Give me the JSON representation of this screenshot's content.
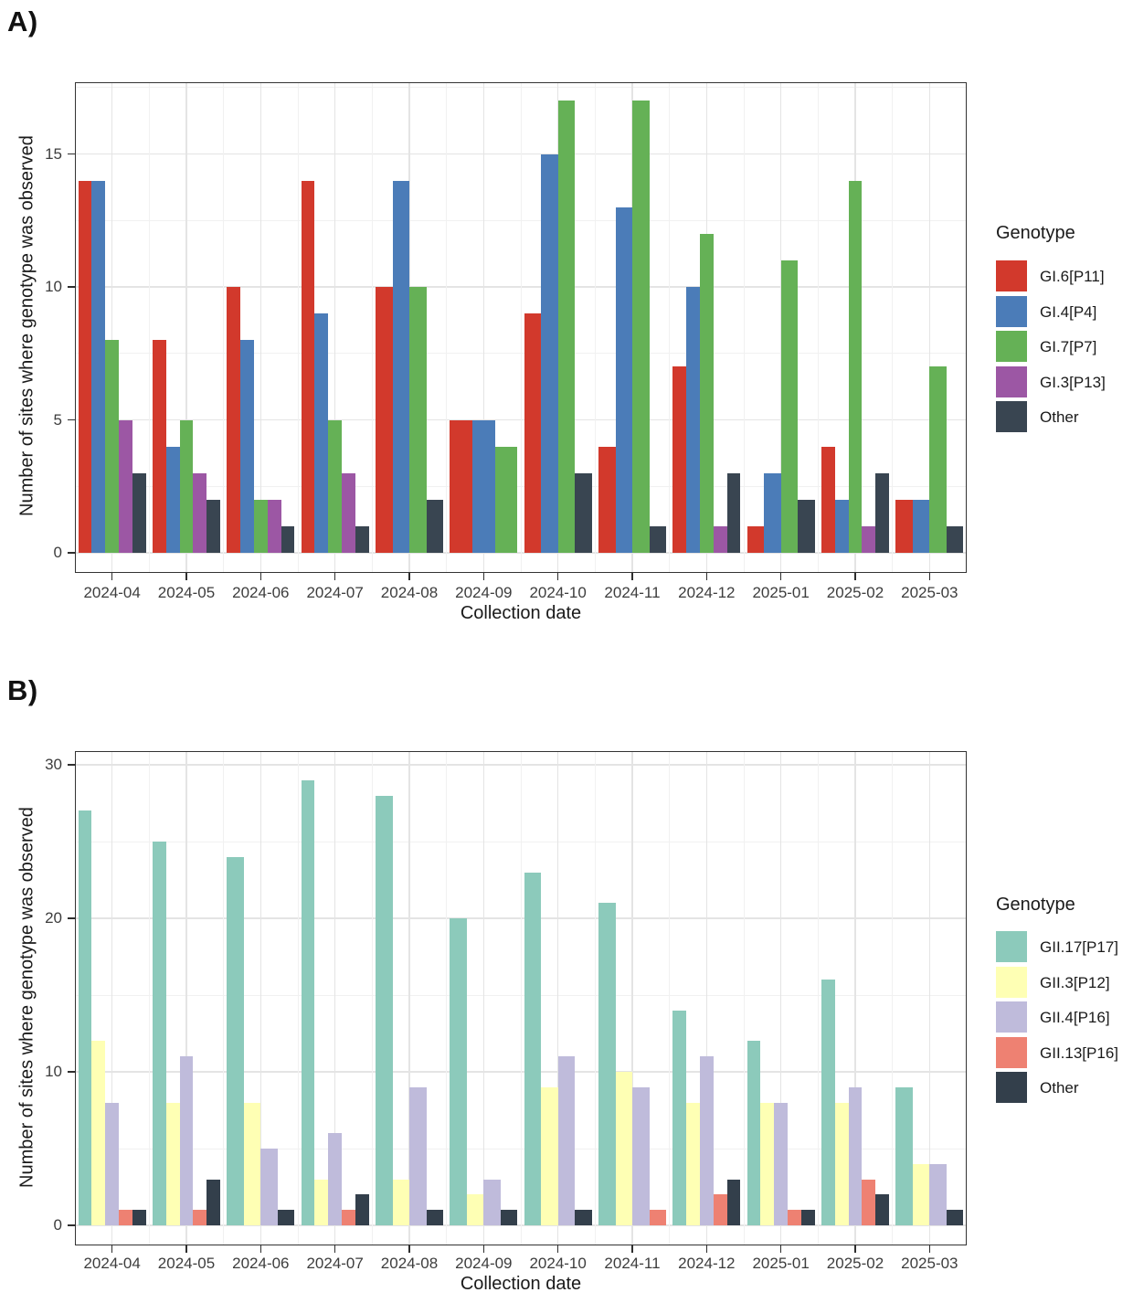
{
  "chart_data": [
    {
      "id": "A",
      "type": "bar",
      "panel_label": "A)",
      "legend_title": "Genotype",
      "legend_position": "right",
      "xlabel": "Collection date",
      "ylabel": "Number of sites where genotype was observed",
      "categories": [
        "2024-04",
        "2024-05",
        "2024-06",
        "2024-07",
        "2024-08",
        "2024-09",
        "2024-10",
        "2024-11",
        "2024-12",
        "2025-01",
        "2025-02",
        "2025-03"
      ],
      "yticks": [
        0,
        5,
        10,
        15
      ],
      "ylim": [
        0,
        17.7
      ],
      "grid": true,
      "series": [
        {
          "name": "GI.6[P11]",
          "color": "#d2392c",
          "values": [
            14,
            8,
            10,
            14,
            10,
            5,
            9,
            4,
            7,
            1,
            4,
            2
          ]
        },
        {
          "name": "GI.4[P4]",
          "color": "#4b7cb8",
          "values": [
            14,
            4,
            8,
            9,
            14,
            5,
            15,
            13,
            10,
            3,
            2,
            2
          ]
        },
        {
          "name": "GI.7[P7]",
          "color": "#65b156",
          "values": [
            8,
            5,
            2,
            5,
            10,
            4,
            17,
            17,
            12,
            11,
            14,
            7
          ]
        },
        {
          "name": "GI.3[P13]",
          "color": "#9c57a4",
          "values": [
            5,
            3,
            2,
            3,
            null,
            null,
            null,
            null,
            1,
            null,
            1,
            null
          ]
        },
        {
          "name": "Other",
          "color": "#394551",
          "values": [
            3,
            2,
            1,
            1,
            2,
            null,
            3,
            1,
            3,
            2,
            3,
            1
          ]
        }
      ]
    },
    {
      "id": "B",
      "type": "bar",
      "panel_label": "B)",
      "legend_title": "Genotype",
      "legend_position": "right",
      "xlabel": "Collection date",
      "ylabel": "Number of sites where genotype was observed",
      "categories": [
        "2024-04",
        "2024-05",
        "2024-06",
        "2024-07",
        "2024-08",
        "2024-09",
        "2024-10",
        "2024-11",
        "2024-12",
        "2025-01",
        "2025-02",
        "2025-03"
      ],
      "yticks": [
        0,
        10,
        20,
        30
      ],
      "ylim": [
        0,
        30.9
      ],
      "grid": true,
      "series": [
        {
          "name": "GII.17[P17]",
          "color": "#8ccabb",
          "values": [
            27,
            25,
            24,
            29,
            28,
            20,
            23,
            21,
            14,
            12,
            16,
            9
          ]
        },
        {
          "name": "GII.3[P12]",
          "color": "#feffb4",
          "values": [
            12,
            8,
            8,
            3,
            3,
            2,
            9,
            10,
            8,
            8,
            8,
            4
          ]
        },
        {
          "name": "GII.4[P16]",
          "color": "#bfbbdb",
          "values": [
            8,
            11,
            5,
            6,
            9,
            3,
            11,
            9,
            11,
            8,
            9,
            4
          ]
        },
        {
          "name": "GII.13[P16]",
          "color": "#ee8172",
          "values": [
            1,
            1,
            null,
            1,
            null,
            null,
            null,
            1,
            2,
            1,
            3,
            null
          ]
        },
        {
          "name": "Other",
          "color": "#333f4b",
          "values": [
            1,
            3,
            1,
            2,
            1,
            1,
            1,
            null,
            3,
            1,
            2,
            1
          ]
        }
      ]
    }
  ]
}
